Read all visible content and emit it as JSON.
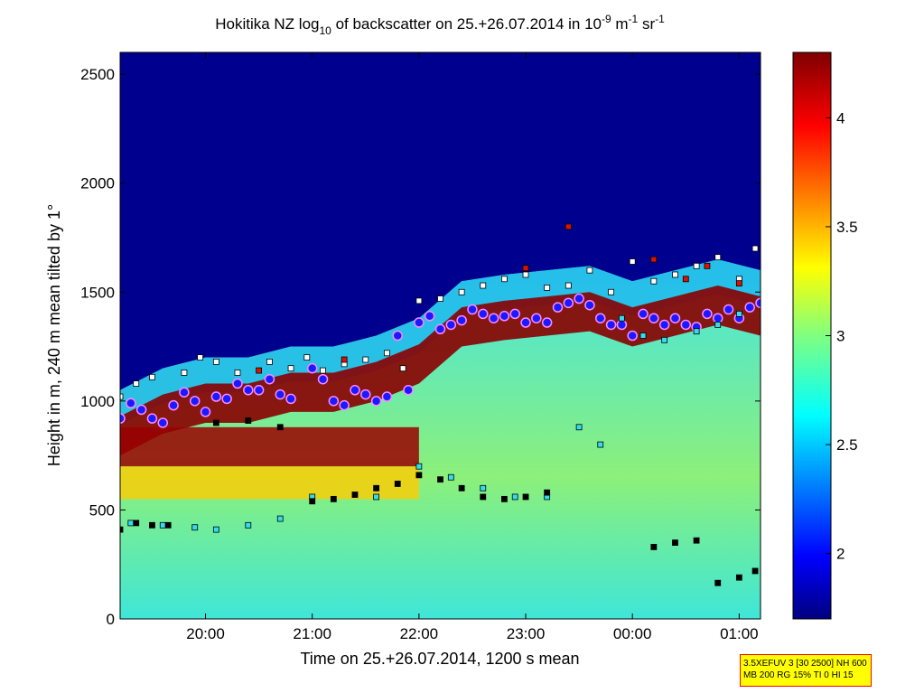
{
  "chart_data": {
    "type": "heatmap",
    "title": {
      "prefix": "Hokitika NZ log",
      "sub": "10",
      "middle": " of backscatter on 25.+26.07.2014 in 10",
      "exp1": "-9",
      "unit1": " m",
      "exp2": "-1",
      "unit2": " sr",
      "exp3": "-1"
    },
    "xlabel": "Time on 25.+26.07.2014, 1200 s mean",
    "ylabel": "Height in m, 240 m mean tilted by 1°",
    "x_ticks": [
      "20:00",
      "21:00",
      "22:00",
      "23:00",
      "00:00",
      "01:00"
    ],
    "y_ticks": [
      "0",
      "500",
      "1000",
      "1500",
      "2000",
      "2500"
    ],
    "ylim": [
      0,
      2600
    ],
    "xlim_hours": [
      19.2,
      25.2
    ],
    "colorbar": {
      "range": [
        1.7,
        4.3
      ],
      "ticks": [
        "2",
        "2.5",
        "3",
        "3.5",
        "4"
      ],
      "colormap": "jet"
    },
    "layers": {
      "cloud_base_top_hours": [
        19.2,
        19.6,
        20.0,
        20.4,
        20.8,
        21.2,
        21.6,
        22.0,
        22.4,
        22.8,
        23.2,
        23.6,
        24.0,
        24.4,
        24.8,
        25.2
      ],
      "cloud_top_heights": [
        1050,
        1150,
        1200,
        1200,
        1250,
        1250,
        1300,
        1380,
        1550,
        1580,
        1600,
        1620,
        1550,
        1600,
        1650,
        1600
      ],
      "aerosol_layer_top": 880
    },
    "series": [
      {
        "marker": "blue-circle",
        "x": [
          19.2,
          19.3,
          19.4,
          19.5,
          19.6,
          19.7,
          19.8,
          19.9,
          20.0,
          20.1,
          20.2,
          20.3,
          20.4,
          20.5,
          20.6,
          20.7,
          20.8,
          21.0,
          21.1,
          21.2,
          21.3,
          21.4,
          21.5,
          21.6,
          21.7,
          21.8,
          21.9,
          22.0,
          22.1,
          22.2,
          22.3,
          22.4,
          22.5,
          22.6,
          22.7,
          22.8,
          22.9,
          23.0,
          23.1,
          23.2,
          23.3,
          23.4,
          23.5,
          23.6,
          23.7,
          23.8,
          23.9,
          24.0,
          24.1,
          24.2,
          24.3,
          24.4,
          24.5,
          24.6,
          24.7,
          24.8,
          24.9,
          25.0,
          25.1,
          25.2
        ],
        "y": [
          920,
          990,
          960,
          920,
          900,
          980,
          1040,
          1000,
          950,
          1020,
          1010,
          1080,
          1050,
          1050,
          1100,
          1030,
          1010,
          1150,
          1100,
          1000,
          980,
          1050,
          1030,
          1000,
          1020,
          1300,
          1050,
          1360,
          1390,
          1330,
          1350,
          1370,
          1420,
          1400,
          1380,
          1390,
          1400,
          1360,
          1380,
          1360,
          1430,
          1450,
          1470,
          1440,
          1380,
          1350,
          1350,
          1300,
          1400,
          1380,
          1350,
          1380,
          1350,
          1340,
          1400,
          1380,
          1420,
          1380,
          1430,
          1450
        ]
      },
      {
        "marker": "white-square",
        "x": [
          19.2,
          19.35,
          19.5,
          19.8,
          19.95,
          20.1,
          20.3,
          20.6,
          20.8,
          20.95,
          21.1,
          21.3,
          21.5,
          21.7,
          21.85,
          22.0,
          22.2,
          22.4,
          22.6,
          22.8,
          23.0,
          23.2,
          23.4,
          23.6,
          23.8,
          24.0,
          24.2,
          24.4,
          24.6,
          24.8,
          25.0,
          25.15
        ],
        "y": [
          1020,
          1080,
          1110,
          1130,
          1200,
          1180,
          1130,
          1180,
          1150,
          1200,
          1140,
          1170,
          1190,
          1220,
          1150,
          1460,
          1470,
          1500,
          1530,
          1560,
          1580,
          1520,
          1530,
          1600,
          1500,
          1640,
          1550,
          1580,
          1620,
          1660,
          1560,
          1700
        ]
      },
      {
        "marker": "cyan-square",
        "x": [
          19.3,
          19.6,
          19.9,
          20.1,
          20.4,
          20.7,
          21.0,
          21.6,
          22.0,
          22.3,
          22.6,
          22.9,
          23.2,
          23.5,
          23.7,
          23.9,
          24.1,
          24.3,
          24.6,
          24.8,
          25.0
        ],
        "y": [
          440,
          430,
          420,
          410,
          430,
          460,
          560,
          560,
          700,
          650,
          600,
          560,
          560,
          880,
          800,
          1380,
          1300,
          1280,
          1320,
          1350,
          1400
        ]
      },
      {
        "marker": "black-square",
        "x": [
          19.2,
          19.35,
          19.5,
          19.65,
          20.1,
          20.4,
          20.7,
          21.0,
          21.2,
          21.4,
          21.6,
          21.8,
          22.0,
          22.2,
          22.4,
          22.6,
          22.8,
          23.0,
          23.2,
          24.2,
          24.4,
          24.6,
          24.8,
          25.0,
          25.15
        ],
        "y": [
          410,
          440,
          430,
          430,
          900,
          910,
          880,
          540,
          550,
          570,
          600,
          620,
          660,
          640,
          600,
          560,
          550,
          560,
          580,
          330,
          350,
          360,
          165,
          190,
          220
        ]
      },
      {
        "marker": "red-square",
        "x": [
          20.5,
          21.3,
          23.0,
          23.4,
          24.2,
          24.5,
          24.7,
          25.0
        ],
        "y": [
          1140,
          1190,
          1610,
          1800,
          1650,
          1560,
          1620,
          1540
        ]
      }
    ]
  },
  "info_box": {
    "line1": "3.5XEFUV 3 [30 2500] NH 600",
    "line2": "MB 200 RG 15% TI 0 HI 15"
  }
}
